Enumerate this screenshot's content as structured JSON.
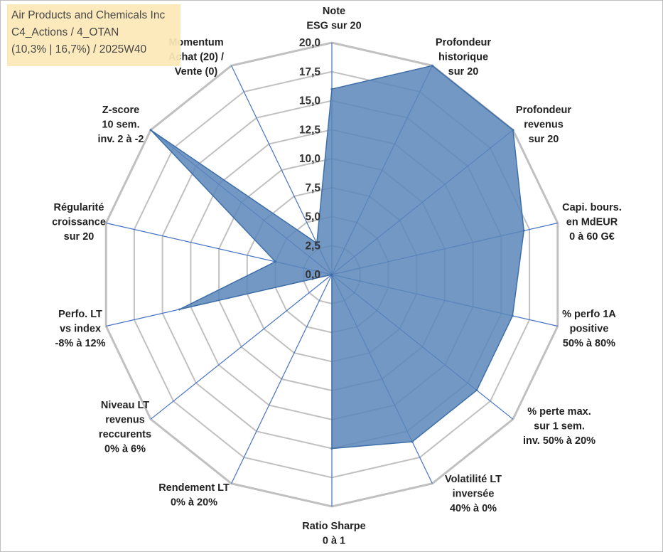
{
  "info_box": {
    "company": "Air Products and Chemicals Inc",
    "category": "C4_Actions / 4_OTAN",
    "stats": "(10,3% | 16,7%) / 2025W40"
  },
  "colors": {
    "fill": "#5b86ba",
    "stroke": "#3f6fa8",
    "grid": "#c0c0c0",
    "spoke": "#4472c4"
  },
  "chart_data": {
    "type": "radar",
    "title": "",
    "axes": [
      [
        "Note",
        "ESG sur 20"
      ],
      [
        "Profondeur",
        "historique",
        "sur 20"
      ],
      [
        "Profondeur",
        "revenus",
        "sur 20"
      ],
      [
        "Capi. bours.",
        "en MdEUR",
        "0 à 60 G€"
      ],
      [
        "% perfo 1A",
        "positive",
        "50% à 80%"
      ],
      [
        "% perte max.",
        "sur 1 sem.",
        "inv. 50% à 20%"
      ],
      [
        "Volatilité LT",
        "inversée",
        "40% à 0%"
      ],
      [
        "Ratio Sharpe",
        "0 à 1"
      ],
      [
        "Rendement LT",
        "0% à 20%"
      ],
      [
        "Niveau LT",
        "revenus",
        "reccurents",
        "0% à 6%"
      ],
      [
        "Perfo. LT",
        "vs index",
        "-8% à 12%"
      ],
      [
        "Régularité",
        "croissance",
        "sur 20"
      ],
      [
        "Z-score",
        "10 sem.",
        "inv. 2 à -2"
      ],
      [
        "Momentum",
        "Achat (20) /",
        "Vente (0)"
      ]
    ],
    "values": [
      16.0,
      20.0,
      20.0,
      17.0,
      16.0,
      16.0,
      16.0,
      15.0,
      0.0,
      0.0,
      13.5,
      5.0,
      20.0,
      3.0
    ],
    "rlim": [
      0,
      20
    ],
    "ticks": [
      "0,0",
      "2,5",
      "5,0",
      "7,5",
      "10,0",
      "12,5",
      "15,0",
      "17,5",
      "20,0"
    ],
    "tick_values": [
      0,
      2.5,
      5,
      7.5,
      10,
      12.5,
      15,
      17.5,
      20
    ],
    "grid": true,
    "legend": "none"
  }
}
